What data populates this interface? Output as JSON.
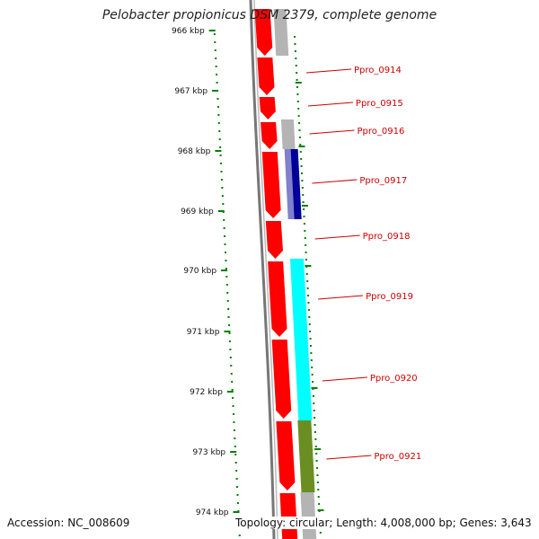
{
  "title": "Pelobacter propionicus DSM 2379, complete genome",
  "footer": {
    "accession": "Accession: NC_008609",
    "topology": "Topology: circular; Length: 4,008,000 bp; Genes: 3,643"
  },
  "axis": {
    "ticks": [
      "966 kbp",
      "967 kbp",
      "968 kbp",
      "969 kbp",
      "970 kbp",
      "971 kbp",
      "972 kbp",
      "973 kbp",
      "974 kbp"
    ],
    "tick_color": "#008000"
  },
  "colors": {
    "forward_gene": "#ff0000",
    "gray_gene": "#b4b4b4",
    "navy_gene": "#000099",
    "lavender_gene": "#8080cc",
    "cyan_gene": "#00ffff",
    "olive_gene": "#6b8e23",
    "label_color": "#cc0000",
    "backbone": "#777777"
  },
  "genes": [
    {
      "label": "Ppro_0914"
    },
    {
      "label": "Ppro_0915"
    },
    {
      "label": "Ppro_0916"
    },
    {
      "label": "Ppro_0917"
    },
    {
      "label": "Ppro_0918"
    },
    {
      "label": "Ppro_0919"
    },
    {
      "label": "Ppro_0920"
    },
    {
      "label": "Ppro_0921"
    }
  ]
}
